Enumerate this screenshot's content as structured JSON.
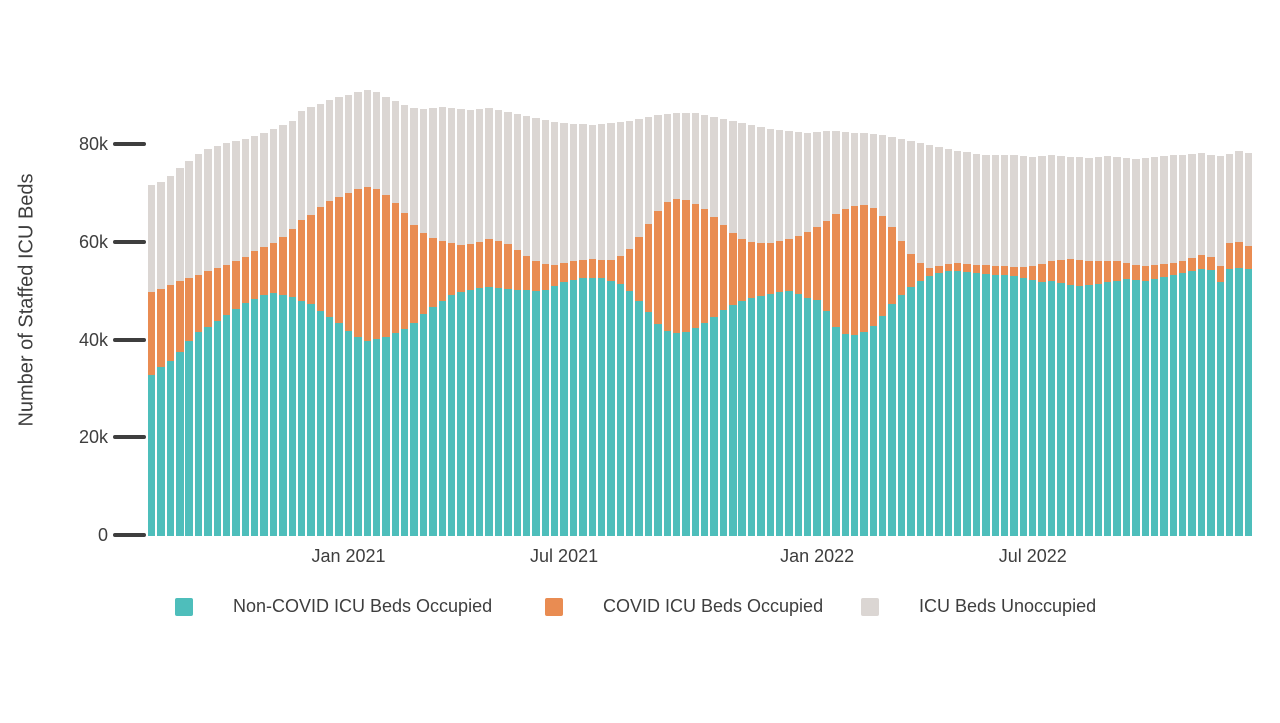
{
  "chart_data": {
    "type": "bar",
    "stacked": true,
    "title": "",
    "xlabel": "",
    "ylabel": "Number of Staffed ICU Beds",
    "unit": "thousands of beds",
    "grid": false,
    "legend_position": "bottom",
    "n_bars": 118,
    "ylim": [
      0,
      93.3
    ],
    "y_tick_values": [
      0,
      20,
      40,
      60,
      80
    ],
    "y_tick_labels": [
      "0",
      "20k",
      "40k",
      "60k",
      "80k"
    ],
    "x_tick_labels": [
      "Jan 2021",
      "Jul 2021",
      "Jan 2022",
      "Jul 2022"
    ],
    "x_tick_bar_indices": [
      21,
      44,
      71,
      94
    ],
    "colors": {
      "non_covid": "#4EBEBB",
      "covid": "#E98C52",
      "unoccupied": "#DBD6D3",
      "text": "#3E3E3E",
      "tick": "#3E3E3E",
      "background": "#ffffff"
    },
    "series": [
      {
        "name": "Non-COVID ICU Beds Occupied",
        "color": "#4EBEBB",
        "values": [
          33.0,
          34.6,
          35.8,
          37.6,
          40.0,
          41.7,
          42.8,
          44.1,
          45.3,
          46.5,
          47.8,
          48.6,
          49.3,
          49.8,
          49.4,
          49.0,
          48.2,
          47.4,
          46.1,
          44.9,
          43.7,
          42.0,
          40.8,
          40.0,
          40.4,
          40.8,
          41.6,
          42.4,
          43.7,
          45.5,
          46.8,
          48.2,
          49.3,
          50.0,
          50.4,
          50.8,
          51.0,
          50.8,
          50.6,
          50.4,
          50.3,
          50.2,
          50.4,
          51.2,
          52.0,
          52.5,
          52.8,
          52.9,
          52.8,
          52.3,
          51.5,
          50.2,
          48.2,
          45.9,
          43.5,
          41.9,
          41.6,
          41.8,
          42.5,
          43.6,
          44.9,
          46.2,
          47.3,
          48.2,
          48.8,
          49.2,
          49.5,
          49.9,
          50.2,
          49.6,
          48.8,
          48.3,
          46.0,
          42.8,
          41.3,
          41.2,
          41.8,
          43.0,
          45.0,
          47.4,
          49.4,
          51.0,
          52.3,
          53.2,
          53.8,
          54.2,
          54.3,
          54.1,
          53.9,
          53.7,
          53.5,
          53.4,
          53.2,
          52.8,
          52.4,
          52.0,
          52.2,
          51.8,
          51.4,
          51.2,
          51.4,
          51.6,
          51.9,
          52.3,
          52.7,
          52.5,
          52.3,
          52.6,
          53.0,
          53.4,
          53.8,
          54.2,
          54.6,
          54.4,
          51.9,
          54.6,
          54.9,
          54.7
        ]
      },
      {
        "name": "COVID ICU Beds Occupied",
        "color": "#E98C52",
        "values": [
          17.0,
          16.0,
          15.6,
          14.7,
          12.8,
          11.8,
          11.5,
          10.7,
          10.2,
          9.9,
          9.4,
          9.8,
          9.9,
          10.2,
          11.9,
          13.9,
          16.4,
          18.4,
          21.3,
          23.7,
          25.8,
          28.3,
          30.3,
          31.5,
          30.7,
          29.1,
          26.6,
          23.8,
          20.0,
          16.5,
          14.2,
          12.2,
          10.7,
          9.6,
          9.4,
          9.4,
          9.8,
          9.6,
          9.2,
          8.2,
          7.1,
          6.2,
          5.2,
          4.2,
          3.8,
          3.7,
          3.8,
          3.9,
          3.8,
          4.3,
          5.9,
          8.6,
          13.0,
          18.0,
          23.1,
          26.5,
          27.4,
          27.0,
          25.5,
          23.3,
          20.5,
          17.4,
          14.7,
          12.7,
          11.4,
          10.7,
          10.5,
          10.5,
          10.7,
          11.8,
          13.4,
          15.0,
          18.4,
          23.1,
          25.6,
          26.4,
          26.0,
          24.2,
          20.6,
          15.8,
          11.0,
          6.8,
          3.6,
          1.7,
          1.5,
          1.5,
          1.5,
          1.6,
          1.6,
          1.7,
          1.8,
          1.8,
          1.9,
          2.2,
          2.8,
          3.6,
          4.1,
          4.8,
          5.4,
          5.4,
          5.0,
          4.6,
          4.5,
          3.9,
          3.2,
          3.0,
          3.0,
          2.9,
          2.7,
          2.5,
          2.6,
          2.8,
          3.0,
          2.8,
          3.4,
          5.4,
          5.2,
          4.6
        ]
      },
      {
        "name": "ICU Beds Unoccupied",
        "color": "#DBD6D3",
        "values": [
          21.9,
          21.9,
          22.4,
          23.1,
          24.0,
          24.8,
          24.9,
          25.1,
          24.9,
          24.5,
          24.1,
          23.5,
          23.4,
          23.4,
          22.9,
          22.1,
          22.4,
          22.0,
          21.1,
          20.6,
          20.3,
          20.0,
          19.7,
          19.8,
          19.8,
          20.0,
          20.9,
          22.1,
          24.0,
          25.4,
          26.6,
          27.5,
          27.7,
          27.9,
          27.5,
          27.2,
          26.8,
          26.8,
          27.0,
          27.7,
          28.5,
          29.1,
          29.5,
          29.4,
          28.8,
          28.2,
          27.7,
          27.4,
          27.7,
          27.9,
          27.3,
          26.2,
          24.1,
          21.8,
          19.5,
          18.0,
          17.6,
          17.9,
          18.5,
          19.3,
          20.4,
          21.8,
          23.0,
          23.7,
          24.0,
          23.9,
          23.4,
          22.7,
          22.0,
          21.3,
          20.4,
          19.4,
          18.5,
          17.1,
          15.9,
          15.0,
          14.7,
          15.1,
          16.4,
          18.5,
          20.9,
          23.1,
          24.6,
          25.2,
          24.4,
          23.6,
          23.1,
          22.9,
          22.8,
          22.7,
          22.7,
          22.7,
          22.8,
          22.8,
          22.4,
          22.1,
          21.6,
          21.1,
          20.7,
          20.9,
          20.9,
          21.3,
          21.3,
          21.3,
          21.4,
          21.6,
          22.0,
          22.0,
          22.0,
          22.0,
          21.7,
          21.3,
          20.9,
          20.9,
          22.4,
          18.3,
          18.8,
          19.2
        ]
      }
    ]
  },
  "legend": {
    "items": [
      {
        "label": "Non-COVID ICU Beds Occupied",
        "color": "#4EBEBB"
      },
      {
        "label": "COVID ICU Beds Occupied",
        "color": "#E98C52"
      },
      {
        "label": "ICU Beds Unoccupied",
        "color": "#DBD6D3"
      }
    ]
  }
}
